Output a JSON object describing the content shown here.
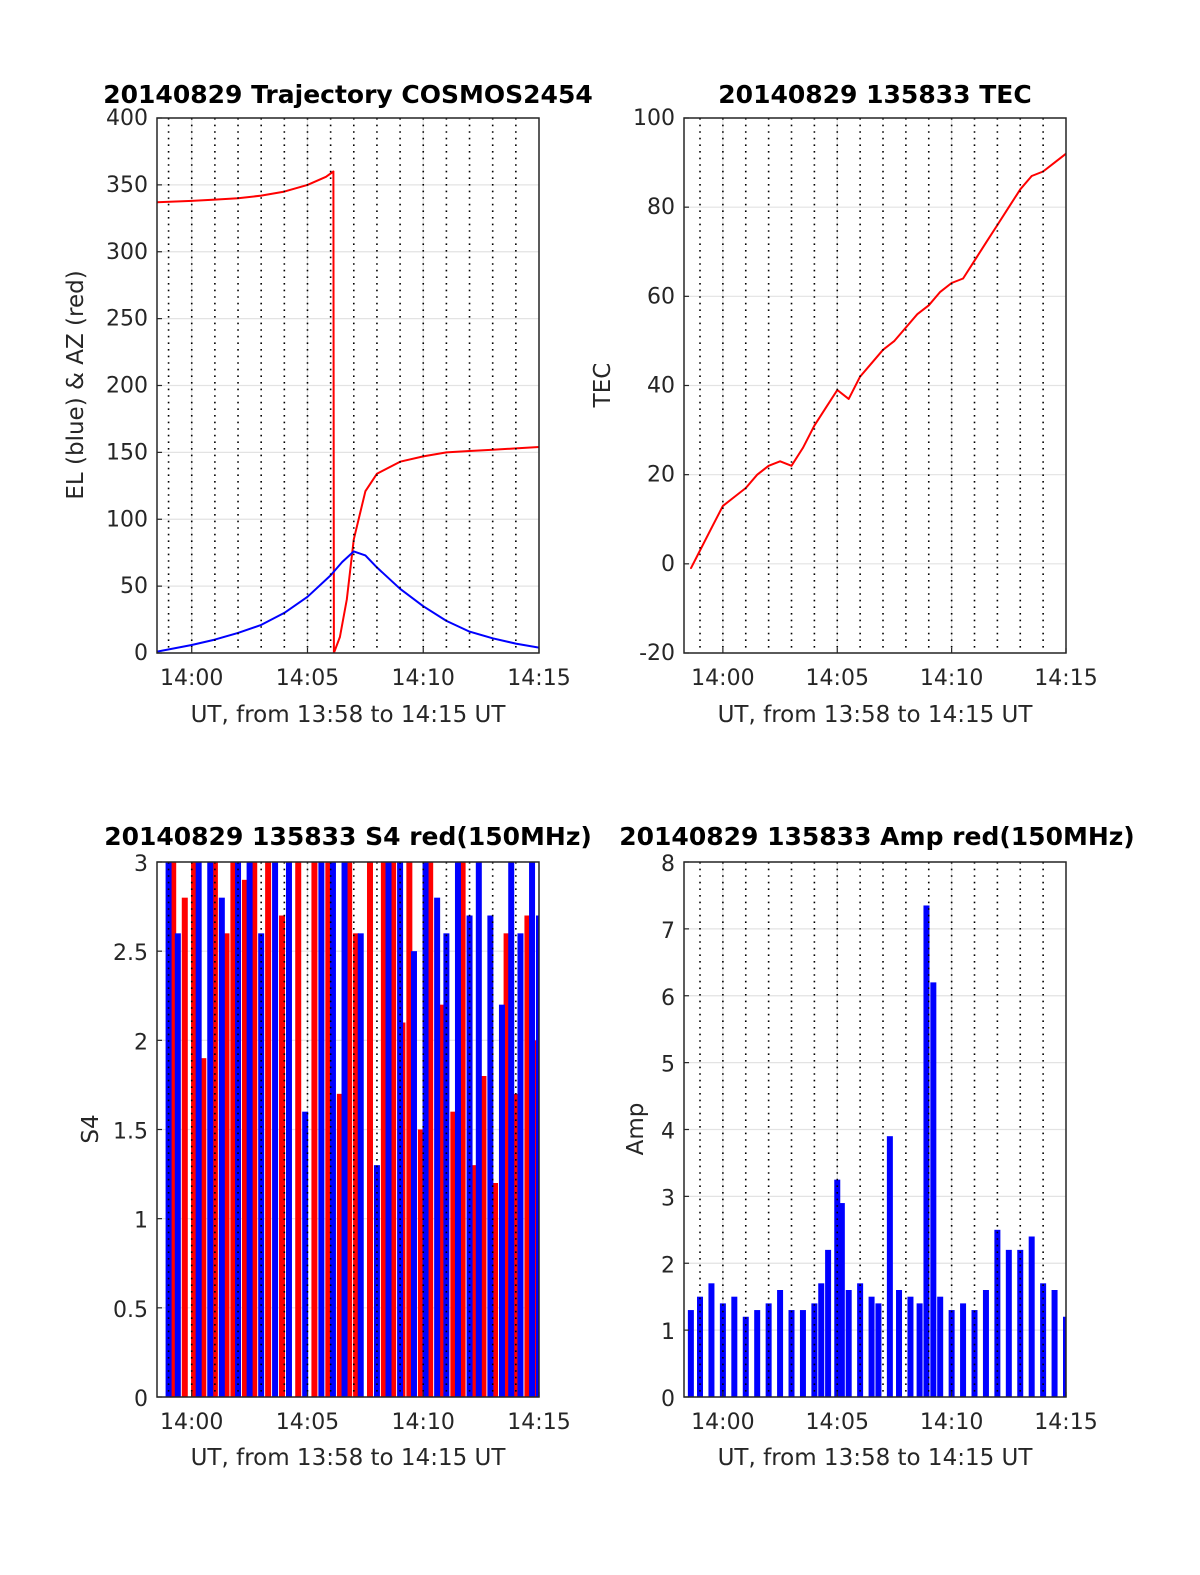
{
  "figure": {
    "background": "#ffffff"
  },
  "chart_data": [
    {
      "type": "line",
      "title": "20140829 Trajectory COSMOS2454",
      "xlabel": "UT, from 13:58 to 14:15 UT",
      "ylabel": "EL (blue) & AZ (red)",
      "x_unit": "minutes after 13:58 UT",
      "xlim": [
        0.5,
        17
      ],
      "ylim": [
        0,
        400
      ],
      "xticks": [
        2,
        7,
        12,
        17
      ],
      "xtick_labels": [
        "14:00",
        "14:05",
        "14:10",
        "14:15"
      ],
      "yticks": [
        0,
        50,
        100,
        150,
        200,
        250,
        300,
        350,
        400
      ],
      "ytick_labels": [
        "0",
        "50",
        "100",
        "150",
        "200",
        "250",
        "300",
        "350",
        "400"
      ],
      "dotted_vlines": [
        1,
        2,
        3,
        4,
        5,
        6,
        7,
        8,
        9,
        10,
        11,
        12,
        13,
        14,
        15,
        16
      ],
      "grid": true,
      "series": [
        {
          "color": "#ff0000",
          "x": [
            0.5,
            2,
            3,
            4,
            5,
            6,
            7,
            7.8,
            8.12,
            8.14,
            8.4,
            8.7,
            9.0,
            9.5,
            10,
            11,
            12,
            13,
            14,
            15,
            16,
            17
          ],
          "values": [
            337,
            338,
            339,
            340,
            342,
            345,
            350,
            356,
            360,
            0,
            12,
            40,
            85,
            121,
            134,
            143,
            147,
            150,
            151,
            152,
            153,
            154
          ]
        },
        {
          "color": "#0000ff",
          "x": [
            0.5,
            2,
            3,
            4,
            5,
            6,
            7,
            8,
            8.5,
            9,
            9.5,
            10,
            11,
            12,
            13,
            14,
            15,
            16,
            17
          ],
          "values": [
            1,
            6,
            10,
            15,
            21,
            30,
            42,
            58,
            68,
            76,
            73,
            64,
            48,
            35,
            24,
            16,
            11,
            7,
            4
          ]
        }
      ]
    },
    {
      "type": "line",
      "title": "20140829 135833 TEC",
      "xlabel": "UT, from 13:58 to 14:15 UT",
      "ylabel": "TEC",
      "x_unit": "minutes after 13:58 UT",
      "xlim": [
        0.3,
        17
      ],
      "ylim": [
        -20,
        100
      ],
      "xticks": [
        2,
        7,
        12,
        17
      ],
      "xtick_labels": [
        "14:00",
        "14:05",
        "14:10",
        "14:15"
      ],
      "yticks": [
        -20,
        0,
        20,
        40,
        60,
        80,
        100
      ],
      "ytick_labels": [
        "-20",
        "0",
        "20",
        "40",
        "60",
        "80",
        "100"
      ],
      "dotted_vlines": [
        1,
        2,
        3,
        4,
        5,
        6,
        7,
        8,
        9,
        10,
        11,
        12,
        13,
        14,
        15,
        16
      ],
      "grid": true,
      "series": [
        {
          "color": "#ff0000",
          "x": [
            0.6,
            1,
            1.5,
            2,
            2.5,
            3,
            3.5,
            4,
            4.5,
            5,
            5.5,
            6,
            6.5,
            7,
            7.5,
            8,
            8.5,
            9,
            9.5,
            10,
            10.5,
            11,
            11.5,
            12,
            12.5,
            13,
            13.5,
            14,
            14.5,
            15,
            15.5,
            16,
            16.5,
            17
          ],
          "values": [
            -1,
            3,
            8,
            13,
            15,
            17,
            20,
            22,
            23,
            22,
            26,
            31,
            35,
            39,
            37,
            42,
            45,
            48,
            50,
            53,
            56,
            58,
            61,
            63,
            64,
            68,
            72,
            76,
            80,
            84,
            87,
            88,
            90,
            92
          ]
        }
      ]
    },
    {
      "type": "bar",
      "title": "20140829 135833 S4 red(150MHz)",
      "xlabel": "UT, from 13:58 to 14:15 UT",
      "ylabel": "S4",
      "x_unit": "minutes after 13:58 UT",
      "xlim": [
        0.5,
        17
      ],
      "ylim": [
        0,
        3
      ],
      "xticks": [
        2,
        7,
        12,
        17
      ],
      "xtick_labels": [
        "14:00",
        "14:05",
        "14:10",
        "14:15"
      ],
      "yticks": [
        0,
        0.5,
        1,
        1.5,
        2,
        2.5,
        3
      ],
      "ytick_labels": [
        "0",
        "0.5",
        "1",
        "1.5",
        "2",
        "2.5",
        "3"
      ],
      "dotted_vlines": [
        1,
        2,
        3,
        4,
        5,
        6,
        7,
        8,
        9,
        10,
        11,
        12,
        13,
        14,
        15,
        16
      ],
      "grid": true,
      "series": [
        {
          "color": "#ff0000",
          "x": [
            1.2,
            1.7,
            2.1,
            2.5,
            3.0,
            3.5,
            3.8,
            4.3,
            4.7,
            5.3,
            5.9,
            6.6,
            7.3,
            7.9,
            8.4,
            8.8,
            9.1,
            9.7,
            10.3,
            10.7,
            11.1,
            11.4,
            11.9,
            12.3,
            12.8,
            13.3,
            13.7,
            14.2,
            14.6,
            15.1,
            15.6,
            16.0,
            16.5,
            16.9
          ],
          "values": [
            3,
            2.8,
            3,
            1.9,
            3,
            2.6,
            3,
            2.9,
            3,
            3,
            2.7,
            3,
            3,
            3,
            1.7,
            3,
            2.6,
            3,
            3,
            3,
            2.1,
            3,
            1.5,
            3,
            2.2,
            1.6,
            3,
            1.3,
            1.8,
            1.2,
            2.6,
            1.7,
            2.7,
            2.0
          ]
        },
        {
          "color": "#0000ff",
          "x": [
            1.0,
            1.4,
            2.3,
            2.8,
            3.3,
            4.0,
            4.5,
            5.0,
            5.6,
            6.2,
            6.9,
            7.6,
            8.1,
            8.6,
            9.3,
            10.0,
            10.5,
            11.0,
            11.6,
            12.1,
            12.6,
            13.0,
            13.5,
            14.0,
            14.4,
            14.9,
            15.4,
            15.8,
            16.2,
            16.7,
            17.0
          ],
          "values": [
            3,
            2.6,
            3,
            3,
            2.8,
            3,
            3,
            2.6,
            3,
            3,
            1.6,
            3,
            3,
            3,
            2.6,
            1.3,
            3,
            3,
            2.5,
            3,
            2.8,
            2.6,
            3,
            2.7,
            3,
            2.7,
            2.2,
            3,
            2.6,
            3,
            2.7
          ]
        }
      ]
    },
    {
      "type": "bar",
      "title": "20140829 135833 Amp red(150MHz)",
      "xlabel": "UT, from 13:58 to 14:15 UT",
      "ylabel": "Amp",
      "x_unit": "minutes after 13:58 UT",
      "xlim": [
        0.3,
        17
      ],
      "ylim": [
        0,
        8
      ],
      "xticks": [
        2,
        7,
        12,
        17
      ],
      "xtick_labels": [
        "14:00",
        "14:05",
        "14:10",
        "14:15"
      ],
      "yticks": [
        0,
        1,
        2,
        3,
        4,
        5,
        6,
        7,
        8
      ],
      "ytick_labels": [
        "0",
        "1",
        "2",
        "3",
        "4",
        "5",
        "6",
        "7",
        "8"
      ],
      "dotted_vlines": [
        1,
        2,
        3,
        4,
        5,
        6,
        7,
        8,
        9,
        10,
        11,
        12,
        13,
        14,
        15,
        16
      ],
      "grid": true,
      "series": [
        {
          "color": "#0000ff",
          "x": [
            0.6,
            1,
            1.5,
            2,
            2.5,
            3,
            3.5,
            4,
            4.5,
            5,
            5.5,
            6,
            6.3,
            6.6,
            7.0,
            7.2,
            7.5,
            8,
            8.5,
            8.8,
            9.3,
            9.7,
            10.2,
            10.6,
            10.9,
            11.2,
            11.5,
            12,
            12.5,
            13,
            13.5,
            14,
            14.5,
            15,
            15.5,
            16,
            16.5,
            17
          ],
          "values": [
            1.3,
            1.5,
            1.7,
            1.4,
            1.5,
            1.2,
            1.3,
            1.4,
            1.6,
            1.3,
            1.3,
            1.4,
            1.7,
            2.2,
            3.25,
            2.9,
            1.6,
            1.7,
            1.5,
            1.4,
            3.9,
            1.6,
            1.5,
            1.4,
            7.35,
            6.2,
            1.5,
            1.3,
            1.4,
            1.3,
            1.6,
            2.5,
            2.2,
            2.2,
            2.4,
            1.7,
            1.6,
            1.2
          ]
        }
      ]
    }
  ]
}
